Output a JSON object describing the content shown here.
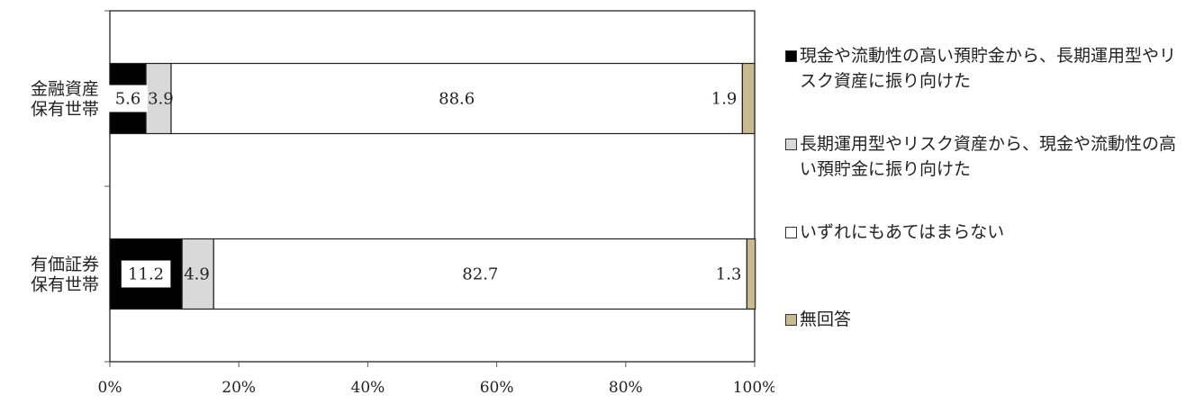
{
  "chart_data": {
    "type": "bar",
    "orientation": "horizontal",
    "stacked": true,
    "categories": [
      "金融資産\n保有世帯",
      "有価証券\n保有世帯"
    ],
    "series": [
      {
        "name": "現金や流動性の高い預貯金から、長期運用型やリスク資産に振り向けた",
        "values": [
          5.6,
          11.2
        ],
        "color": "#000000",
        "label_color": "#222222",
        "label_bg": "#ffffff"
      },
      {
        "name": "長期運用型やリスク資産から、現金や流動性の高い預貯金に振り向けた",
        "values": [
          3.9,
          4.9
        ],
        "color": "#d9d9d9",
        "label_color": "#222222",
        "label_bg": ""
      },
      {
        "name": "いずれにもあてはまらない",
        "values": [
          88.6,
          82.7
        ],
        "color": "#ffffff",
        "label_color": "#222222",
        "label_bg": ""
      },
      {
        "name": "無回答",
        "values": [
          1.9,
          1.3
        ],
        "color": "#c8bb8f",
        "label_color": "#222222",
        "label_bg": ""
      }
    ],
    "data_labels": [
      [
        "5.6",
        "3.9",
        "88.6",
        "1.9"
      ],
      [
        "11.2",
        "4.9",
        "82.7",
        "1.3"
      ]
    ],
    "xlim": [
      0,
      100
    ],
    "x_ticks": [
      "0%",
      "20%",
      "40%",
      "60%",
      "80%",
      "100%"
    ],
    "title": "",
    "xlabel": "",
    "ylabel": "",
    "grid": false,
    "legend_position": "right"
  }
}
